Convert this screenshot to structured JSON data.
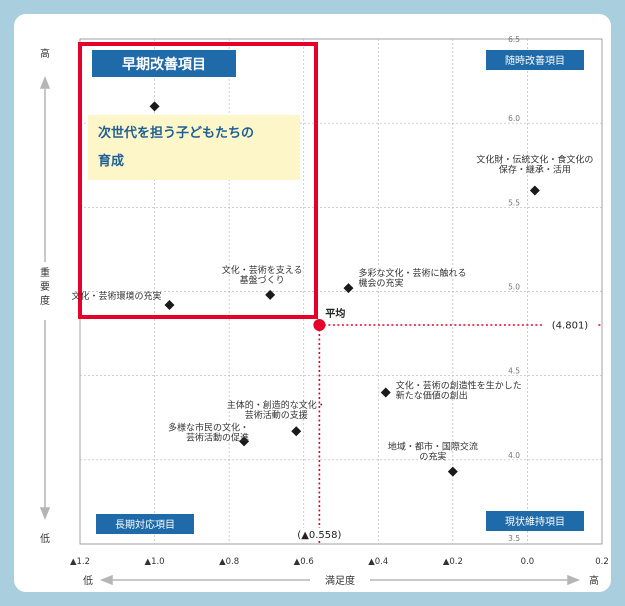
{
  "chart_data": {
    "type": "scatter",
    "title": "",
    "xlabel": "満足度",
    "ylabel": "重要度",
    "x_low_label": "低",
    "x_high_label": "高",
    "y_low_label": "低",
    "y_high_label": "高",
    "xlim": [
      -1.2,
      0.2
    ],
    "ylim": [
      3.5,
      6.5
    ],
    "x_ticks": [
      {
        "value": -1.2,
        "label": "▲1.2"
      },
      {
        "value": -1.0,
        "label": "▲1.0"
      },
      {
        "value": -0.8,
        "label": "▲0.8"
      },
      {
        "value": -0.6,
        "label": "▲0.6"
      },
      {
        "value": -0.4,
        "label": "▲0.4"
      },
      {
        "value": -0.2,
        "label": "▲0.2"
      },
      {
        "value": 0.0,
        "label": "0.0"
      },
      {
        "value": 0.2,
        "label": "0.2"
      }
    ],
    "y_ticks": [
      {
        "value": 6.5,
        "label": "6.5"
      },
      {
        "value": 6.0,
        "label": "6.0"
      },
      {
        "value": 5.5,
        "label": "5.5"
      },
      {
        "value": 5.0,
        "label": "5.0"
      },
      {
        "value": 4.5,
        "label": "4.5"
      },
      {
        "value": 4.0,
        "label": "4.0"
      },
      {
        "value": 3.5,
        "label": "3.5"
      }
    ],
    "grid": true,
    "average": {
      "label": "平均",
      "x": -0.558,
      "y": 4.801,
      "x_label": "(▲0.558)",
      "y_label": "(4.801)"
    },
    "quadrants": {
      "top_left": "早期改善項目",
      "top_right": "随時改善項目",
      "bottom_left": "長期対応項目",
      "bottom_right": "現状維持項目"
    },
    "highlight": {
      "lines": [
        "次世代を担う子どもたちの",
        "育成"
      ]
    },
    "points": [
      {
        "x": -1.0,
        "y": 6.1,
        "lines": [],
        "highlighted": true
      },
      {
        "x": -0.96,
        "y": 4.92,
        "lines": [
          "文化・芸術環境の充実"
        ]
      },
      {
        "x": -0.69,
        "y": 4.98,
        "lines": [
          "文化・芸術を支える",
          "基盤づくり"
        ]
      },
      {
        "x": -0.48,
        "y": 5.02,
        "lines": [
          "多彩な文化・芸術に触れる",
          "機会の充実"
        ]
      },
      {
        "x": 0.02,
        "y": 5.6,
        "lines": [
          "文化財・伝統文化・食文化の",
          "保存・継承・活用"
        ]
      },
      {
        "x": -0.38,
        "y": 4.4,
        "lines": [
          "文化・芸術の創造性を生かした",
          "新たな価値の創出"
        ]
      },
      {
        "x": -0.62,
        "y": 4.17,
        "lines": [
          "主体的・創造的な文化・",
          "芸術活動の支援"
        ]
      },
      {
        "x": -0.76,
        "y": 4.11,
        "lines": [
          "多様な市民の文化・",
          "芸術活動の促進"
        ]
      },
      {
        "x": -0.2,
        "y": 3.93,
        "lines": [
          "地域・都市・国際交流",
          "の充実"
        ]
      }
    ]
  },
  "colors": {
    "background": "#a9cede",
    "quadrant_box": "#1f6aa8",
    "highlight_frame": "#e4002b",
    "highlight_fill": "#fdf6c8",
    "average_line": "#e4002b",
    "marker": "#1a1a1a"
  }
}
